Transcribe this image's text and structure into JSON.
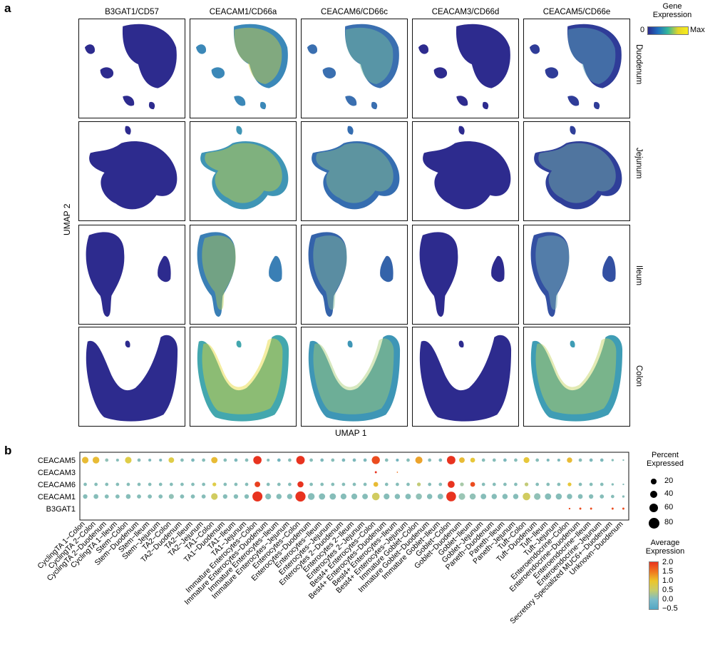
{
  "panel_a": {
    "letter": "a",
    "columns": [
      "B3GAT1/CD57",
      "CEACAM1/CD66a",
      "CEACAM6/CD66c",
      "CEACAM3/CD66d",
      "CEACAM5/CD66e"
    ],
    "rows": [
      "Duodenum",
      "Jejunum",
      "Ileum",
      "Colon"
    ],
    "x_label": "UMAP 1",
    "y_label": "UMAP 2",
    "legend": {
      "title_line1": "Gene",
      "title_line2": "Expression",
      "min_label": "0",
      "max_label": "Max",
      "colors": [
        "#2b2a8c",
        "#1f7fbf",
        "#34b89a",
        "#e3d42a",
        "#f7e81e"
      ]
    }
  },
  "panel_b": {
    "letter": "b",
    "size_legend": {
      "title_line1": "Percent",
      "title_line2": "Expressed",
      "values": [
        "20",
        "40",
        "60",
        "80"
      ]
    },
    "color_legend": {
      "title_line1": "Average",
      "title_line2": "Expression",
      "ticks": [
        "2.0",
        "1.5",
        "1.0",
        "0.5",
        "0.0",
        "−0.5"
      ]
    }
  },
  "chart_data": {
    "type": "scatter",
    "genes": [
      "CEACAM5",
      "CEACAM3",
      "CEACAM6",
      "CEACAM1",
      "B3GAT1"
    ],
    "cell_types": [
      "CyclingTA 1−Colon",
      "CyclingTA 2−Colon",
      "CyclingTA 2−Duodenum",
      "CyclingTA 1−Ileum",
      "Stem−Colon",
      "Stem−Duodenum",
      "Stem−Ileum",
      "Stem−Jejunum",
      "TA2−Colon",
      "TA2−Duodenum",
      "TA2−Ileum",
      "TA2−Jejunum",
      "TA1−Colon",
      "TA1−Duodenum",
      "TA1−Ileum",
      "TA1−Jejunum",
      "Immature Enterocytes−Colon",
      "Immature Enterocytes−Duodenum",
      "Immature Enterocytes−Ileum",
      "Immature Enterocytes−Jejunum",
      "Enterocytes−Colon",
      "Enterocytes−Duodenum",
      "Enterocytes−Ileum",
      "Enterocytes−Jejunum",
      "Enterocytes 2−Duodenum",
      "Enterocytes 2−Ileum",
      "Enterocytes 2−Jejunum",
      "Best4+ Enterocytes−Colon",
      "Best4+ Enterocytes−Duodenum",
      "Best4+ Enterocytes−Ileum",
      "Best4+ Enterocytes−Jejunum",
      "Immature Goblet−Colon",
      "Immature Goblet−Duodenum",
      "Immature Goblet−Ileum",
      "Goblet−Colon",
      "Goblet−Duodenum",
      "Goblet−Ileum",
      "Goblet−Jejunum",
      "Paneth−Duodenum",
      "Paneth−Ileum",
      "Paneth−Jejunum",
      "Tuft−Colon",
      "Tuft−Duodenum",
      "Tuft−Ileum",
      "Tuft−Jejunum",
      "Enteroendocrine−Colon",
      "Enteroendocrine−Duodenum",
      "Enteroendocrine−Ileum",
      "Enteroendocrine−Jejunum",
      "Secretory Specialized MUC6+−Duodenum",
      "Unknown−Duodenum"
    ],
    "size_scale": [
      20,
      40,
      60,
      80
    ],
    "color_range": [
      -0.5,
      2.0
    ],
    "rows": {
      "CEACAM5": {
        "pct": [
          30,
          32,
          8,
          6,
          30,
          8,
          6,
          6,
          22,
          8,
          8,
          8,
          28,
          8,
          8,
          8,
          48,
          6,
          8,
          8,
          50,
          8,
          8,
          8,
          8,
          8,
          8,
          46,
          8,
          6,
          8,
          36,
          8,
          8,
          50,
          22,
          16,
          8,
          8,
          8,
          8,
          24,
          8,
          6,
          6,
          20,
          8,
          8,
          8,
          4,
          2
        ],
        "avg": [
          0.9,
          0.9,
          0.1,
          0.0,
          0.7,
          0.0,
          -0.1,
          -0.1,
          0.7,
          0.0,
          -0.1,
          0.0,
          0.9,
          0.0,
          -0.1,
          0.0,
          2.0,
          0.0,
          -0.2,
          0.0,
          2.0,
          0.0,
          -0.1,
          0.0,
          -0.1,
          -0.1,
          -0.1,
          1.8,
          0.0,
          -0.2,
          0.0,
          1.1,
          0.0,
          -0.1,
          2.0,
          0.9,
          0.8,
          0.0,
          0.0,
          -0.1,
          0.0,
          0.8,
          0.0,
          -0.1,
          -0.1,
          0.9,
          0.0,
          -0.1,
          -0.1,
          0.0,
          0.0
        ]
      },
      "CEACAM3": {
        "pct": [
          0,
          0,
          0,
          0,
          0,
          0,
          0,
          0,
          0,
          0,
          0,
          0,
          0,
          0,
          0,
          0,
          0,
          0,
          0,
          0,
          0,
          0,
          0,
          0,
          0,
          0,
          0,
          3,
          0,
          1,
          0,
          0,
          0,
          0,
          0,
          0,
          0,
          0,
          0,
          0,
          0,
          0,
          0,
          0,
          0,
          0,
          0,
          0,
          0,
          0,
          0
        ],
        "avg": [
          0,
          0,
          0,
          0,
          0,
          0,
          0,
          0,
          0,
          0,
          0,
          0,
          0,
          0,
          0,
          0,
          0,
          0,
          0,
          0,
          0,
          0,
          0,
          0,
          0,
          0,
          0,
          2.0,
          0,
          1.5,
          0,
          0,
          0,
          0,
          0,
          0,
          0,
          0,
          0,
          0,
          0,
          0,
          0,
          0,
          0,
          0,
          0,
          0,
          0,
          0,
          0
        ]
      },
      "CEACAM6": {
        "pct": [
          8,
          8,
          8,
          8,
          8,
          8,
          8,
          8,
          8,
          8,
          8,
          8,
          10,
          8,
          8,
          8,
          22,
          8,
          8,
          8,
          26,
          8,
          8,
          8,
          8,
          8,
          8,
          16,
          8,
          8,
          8,
          10,
          8,
          8,
          34,
          10,
          16,
          8,
          8,
          8,
          8,
          10,
          8,
          8,
          8,
          10,
          8,
          8,
          8,
          4,
          2
        ],
        "avg": [
          0.0,
          0.0,
          0.0,
          0.0,
          0.0,
          0.0,
          0.0,
          0.0,
          0.0,
          0.0,
          0.0,
          0.0,
          0.7,
          0.0,
          0.0,
          0.0,
          1.9,
          0.0,
          0.0,
          0.0,
          2.0,
          0.0,
          0.0,
          0.0,
          0.0,
          0.0,
          0.0,
          0.9,
          0.0,
          0.0,
          0.0,
          0.5,
          0.0,
          0.0,
          2.0,
          0.3,
          1.8,
          0.0,
          0.0,
          0.0,
          0.0,
          0.5,
          0.0,
          0.0,
          0.0,
          0.8,
          0.0,
          0.0,
          0.0,
          0.0,
          0.0
        ]
      },
      "CEACAM1": {
        "pct": [
          14,
          16,
          12,
          12,
          16,
          12,
          12,
          12,
          18,
          12,
          12,
          12,
          30,
          14,
          14,
          14,
          70,
          24,
          20,
          20,
          72,
          32,
          28,
          28,
          24,
          24,
          22,
          40,
          24,
          20,
          22,
          26,
          20,
          22,
          66,
          30,
          26,
          22,
          20,
          20,
          20,
          40,
          30,
          28,
          26,
          20,
          16,
          14,
          12,
          8,
          4
        ],
        "avg": [
          0.0,
          0.0,
          0.0,
          0.0,
          0.0,
          0.0,
          0.0,
          0.0,
          0.1,
          0.0,
          0.0,
          0.0,
          0.6,
          0.0,
          0.0,
          0.0,
          2.0,
          0.0,
          0.0,
          0.0,
          2.0,
          0.0,
          0.0,
          0.0,
          0.0,
          0.0,
          0.0,
          0.6,
          0.0,
          0.0,
          0.0,
          0.1,
          0.0,
          0.0,
          2.0,
          0.2,
          0.1,
          0.0,
          0.0,
          0.0,
          0.0,
          0.6,
          0.1,
          0.0,
          0.0,
          0.0,
          0.0,
          0.0,
          0.0,
          0.0,
          0.0
        ]
      },
      "B3GAT1": {
        "pct": [
          0,
          0,
          0,
          0,
          0,
          0,
          0,
          0,
          0,
          0,
          0,
          0,
          0,
          0,
          0,
          0,
          0,
          0,
          0,
          0,
          0,
          0,
          0,
          0,
          0,
          0,
          0,
          0,
          0,
          0,
          0,
          0,
          0,
          0,
          0,
          0,
          0,
          0,
          0,
          0,
          0,
          0,
          0,
          0,
          0,
          2,
          3,
          3,
          0,
          3,
          3
        ],
        "avg": [
          0,
          0,
          0,
          0,
          0,
          0,
          0,
          0,
          0,
          0,
          0,
          0,
          0,
          0,
          0,
          0,
          0,
          0,
          0,
          0,
          0,
          0,
          0,
          0,
          0,
          0,
          0,
          0,
          0,
          0,
          0,
          0,
          0,
          0,
          0,
          0,
          0,
          0,
          0,
          0,
          0,
          0,
          0,
          0,
          0,
          1.8,
          1.8,
          1.8,
          0,
          1.8,
          1.8
        ]
      }
    }
  }
}
